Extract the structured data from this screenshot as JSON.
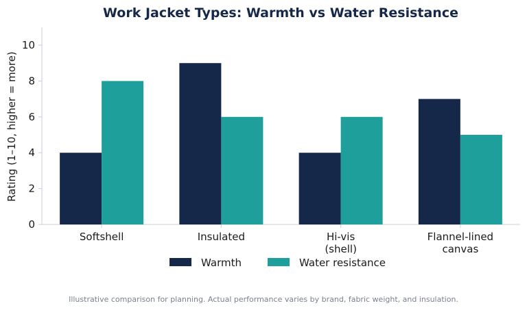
{
  "chart_data": {
    "type": "bar",
    "title": "Work Jacket Types: Warmth vs Water Resistance",
    "ylabel": "Rating (1–10, higher = more)",
    "xlabel": "",
    "categories": [
      [
        "Softshell"
      ],
      [
        "Insulated"
      ],
      [
        "Hi-vis",
        "(shell)"
      ],
      [
        "Flannel-lined",
        "canvas"
      ]
    ],
    "series": [
      {
        "name": "Warmth",
        "values": [
          4,
          9,
          4,
          7
        ],
        "color": "#16284a"
      },
      {
        "name": "Water resistance",
        "values": [
          8,
          6,
          6,
          5
        ],
        "color": "#1e9f9c"
      }
    ],
    "ylim": [
      0,
      11
    ],
    "yticks": [
      0,
      2,
      4,
      6,
      8,
      10
    ],
    "grid": false,
    "legend_position": "bottom-center"
  },
  "caption": "Illustrative comparison for planning. Actual performance varies by brand, fabric weight, and insulation.",
  "colors": {
    "title": "#16284a",
    "axis": "#c8cdd8",
    "caption": "#7a8090"
  }
}
